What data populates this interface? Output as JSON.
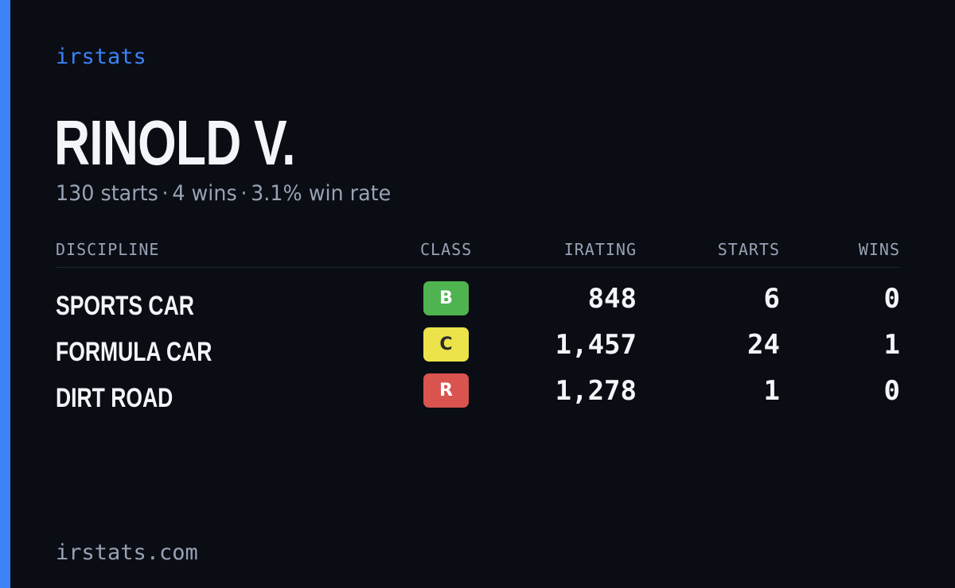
{
  "brand": "irstats",
  "driver": {
    "name": "RINOLD V.",
    "starts_text": "130 starts",
    "wins_text": "4 wins",
    "win_rate_text": "3.1% win rate",
    "separator": "·"
  },
  "table": {
    "headers": {
      "discipline": "DISCIPLINE",
      "class": "CLASS",
      "irating": "IRATING",
      "starts": "STARTS",
      "wins": "WINS"
    },
    "rows": [
      {
        "discipline": "SPORTS CAR",
        "class": "B",
        "class_bg": "#4fb350",
        "class_fg": "#ffffff",
        "irating": "848",
        "starts": "6",
        "wins": "0"
      },
      {
        "discipline": "FORMULA CAR",
        "class": "C",
        "class_bg": "#ece34a",
        "class_fg": "#2a2a2a",
        "irating": "1,457",
        "starts": "24",
        "wins": "1"
      },
      {
        "discipline": "DIRT ROAD",
        "class": "R",
        "class_bg": "#d9534f",
        "class_fg": "#ffffff",
        "irating": "1,278",
        "starts": "1",
        "wins": "0"
      }
    ]
  },
  "footer": "irstats.com",
  "colors": {
    "accent": "#3b82f6",
    "background": "#0a0d14",
    "text_primary": "#f3f5f9",
    "text_muted": "#98a2b3"
  }
}
